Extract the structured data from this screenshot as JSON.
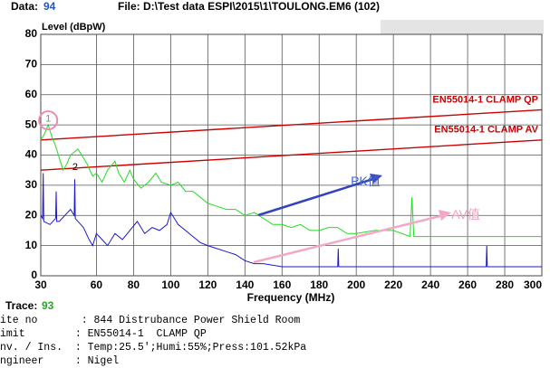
{
  "header": {
    "data_label": "Data:",
    "data_value": "94",
    "file": "File: D:\\Test data ESPI\\2015\\1\\TOULONG.EM6  (102)"
  },
  "chart_data": {
    "type": "line",
    "ylabel": "Level (dBpW)",
    "xlabel": "Frequency (MHz)",
    "xlim": [
      30,
      300
    ],
    "ylim": [
      0,
      80
    ],
    "xticks": [
      30,
      60,
      80,
      100,
      120,
      140,
      160,
      180,
      200,
      220,
      240,
      260,
      280,
      300
    ],
    "yticks": [
      0,
      10,
      20,
      30,
      40,
      50,
      60,
      70,
      80
    ],
    "grid": true,
    "series": [
      {
        "name": "EN55014-1  CLAMP QP",
        "color": "#cc0000",
        "x": [
          30,
          300
        ],
        "values": [
          45,
          55
        ]
      },
      {
        "name": "EN55014-1  CLAMP AV",
        "color": "#cc0000",
        "x": [
          30,
          300
        ],
        "values": [
          35,
          45
        ]
      },
      {
        "color": "#22dd22",
        "x": [
          30,
          32,
          34,
          36,
          38,
          40,
          42,
          44,
          46,
          48,
          50,
          52,
          55,
          58,
          60,
          63,
          66,
          70,
          72,
          75,
          78,
          80,
          84,
          88,
          92,
          95,
          100,
          104,
          108,
          112,
          116,
          120,
          125,
          130,
          135,
          140,
          145,
          150,
          155,
          160,
          165,
          170,
          175,
          180,
          185,
          190,
          195,
          200,
          210,
          220,
          229,
          230,
          231,
          240,
          250,
          260,
          270,
          280,
          290,
          300
        ],
        "values": [
          45,
          47,
          50,
          46,
          43,
          39,
          35,
          37,
          40,
          41,
          42,
          40,
          37,
          33,
          34,
          31,
          35,
          38,
          34,
          31,
          35,
          32,
          29,
          31,
          34,
          31,
          30,
          31,
          28,
          28,
          26,
          24,
          23,
          22,
          22,
          20,
          21,
          19,
          17,
          17,
          16,
          17,
          15,
          15,
          16,
          16,
          14,
          14,
          15,
          15,
          13,
          26,
          13,
          13,
          13,
          13,
          13,
          13,
          13,
          13
        ]
      },
      {
        "color": "#1a1acc",
        "x": [
          30,
          31,
          31.3,
          31.6,
          35,
          38,
          38.3,
          38.6,
          40,
          43,
          46,
          48,
          48.3,
          48.6,
          50,
          53,
          56,
          58,
          60,
          63,
          66,
          70,
          74,
          78,
          82,
          86,
          90,
          94,
          98,
          100,
          104,
          108,
          112,
          116,
          120,
          125,
          130,
          135,
          140,
          145,
          150,
          160,
          170,
          180,
          190,
          190.3,
          190.6,
          200,
          220,
          240,
          260,
          270,
          270.3,
          270.6,
          280,
          300
        ],
        "values": [
          20,
          19,
          34,
          18,
          17,
          19,
          28,
          18,
          18,
          20,
          22,
          20,
          32,
          19,
          18,
          16,
          12,
          10,
          14,
          12,
          10,
          14,
          12,
          15,
          18,
          14,
          16,
          15,
          17,
          21,
          17,
          15,
          13,
          11,
          10,
          9,
          8,
          7,
          5,
          4,
          4,
          3,
          3,
          3,
          3,
          9,
          3,
          3,
          3,
          3,
          3,
          3,
          10,
          3,
          3,
          3
        ]
      }
    ],
    "annotations": [
      {
        "text": "PK值",
        "x": 205,
        "y": 31,
        "color": "#4466cc"
      },
      {
        "text": "AV值",
        "x": 259,
        "y": 20,
        "color": "#f0a0c0"
      },
      {
        "text": "1",
        "x": 34,
        "y": 52,
        "color": "#888888"
      },
      {
        "text": "2",
        "x": 48.5,
        "y": 36,
        "color": "#000000"
      }
    ]
  },
  "footer": {
    "trace_label": "Trace:",
    "trace_value": "93",
    "lines": [
      "ite no       : 844 Distrubance Power Shield Room",
      "imit        : EN55014-1  CLAMP QP",
      "nv. / Ins.  : Temp:25.5';Humi:55%;Press:101.52kPa",
      "ngineer     : Nigel"
    ]
  }
}
